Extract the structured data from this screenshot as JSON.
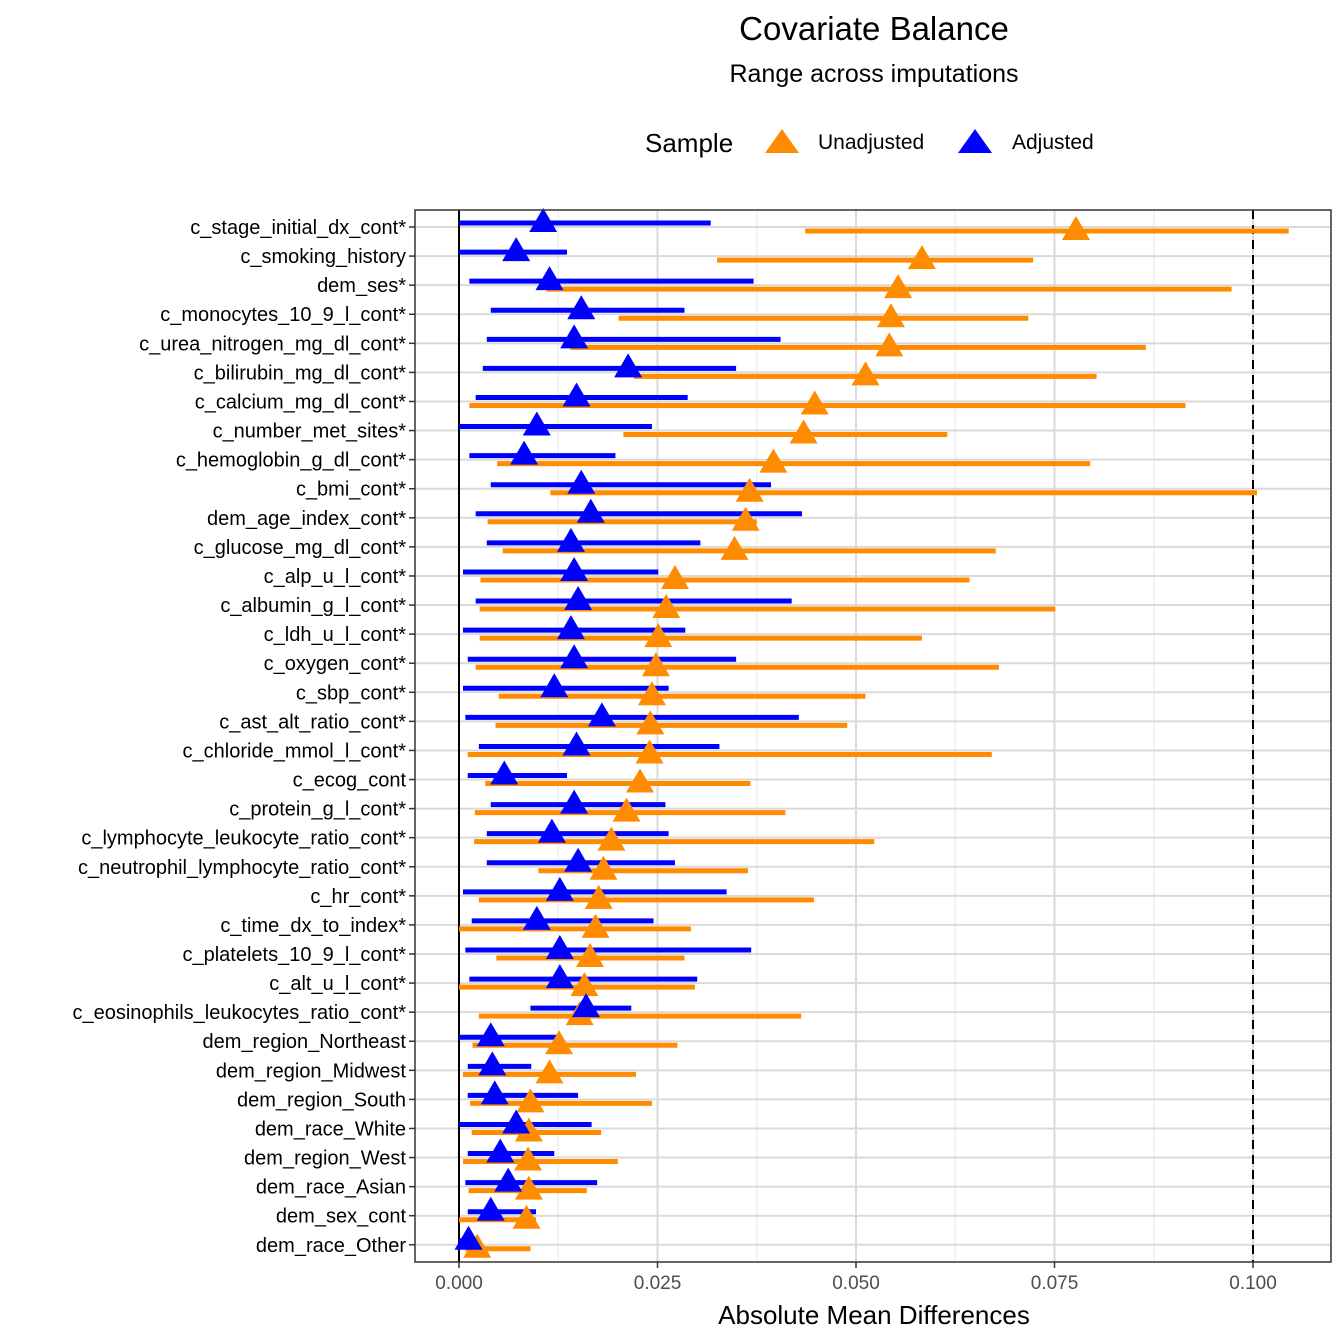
{
  "chart_data": {
    "type": "dot-range",
    "title": "Covariate Balance",
    "subtitle": "Range across imputations",
    "xlabel": "Absolute Mean Differences",
    "ylabel": "",
    "xlim": [
      -0.0113,
      0.1068
    ],
    "xticks": [
      "0.000",
      "0.025",
      "0.050",
      "0.075",
      "0.100"
    ],
    "xtick_values": [
      0,
      0.025,
      0.05,
      0.075,
      0.1
    ],
    "threshold": 0.1,
    "grid": true,
    "legend": {
      "title": "Sample",
      "position": "top",
      "entries": [
        "Unadjusted",
        "Adjusted"
      ]
    },
    "colors": {
      "Unadjusted": "#FF8C00",
      "Adjusted": "#0000FF"
    },
    "categories": [
      "c_stage_initial_dx_cont*",
      "c_smoking_history",
      "dem_ses*",
      "c_monocytes_10_9_l_cont*",
      "c_urea_nitrogen_mg_dl_cont*",
      "c_bilirubin_mg_dl_cont*",
      "c_calcium_mg_dl_cont*",
      "c_number_met_sites*",
      "c_hemoglobin_g_dl_cont*",
      "c_bmi_cont*",
      "dem_age_index_cont*",
      "c_glucose_mg_dl_cont*",
      "c_alp_u_l_cont*",
      "c_albumin_g_l_cont*",
      "c_ldh_u_l_cont*",
      "c_oxygen_cont*",
      "c_sbp_cont*",
      "c_ast_alt_ratio_cont*",
      "c_chloride_mmol_l_cont*",
      "c_ecog_cont",
      "c_protein_g_l_cont*",
      "c_lymphocyte_leukocyte_ratio_cont*",
      "c_neutrophil_lymphocyte_ratio_cont*",
      "c_hr_cont*",
      "c_time_dx_to_index*",
      "c_platelets_10_9_l_cont*",
      "c_alt_u_l_cont*",
      "c_eosinophils_leukocytes_ratio_cont*",
      "dem_region_Northeast",
      "dem_region_Midwest",
      "dem_region_South",
      "dem_race_White",
      "dem_region_West",
      "dem_race_Asian",
      "dem_sex_cont",
      "dem_race_Other"
    ],
    "series": [
      {
        "name": "Unadjusted",
        "values": [
          0.0777,
          0.0583,
          0.0553,
          0.0544,
          0.0542,
          0.0512,
          0.0448,
          0.0434,
          0.0396,
          0.0366,
          0.0361,
          0.0347,
          0.0272,
          0.0261,
          0.0251,
          0.0248,
          0.0243,
          0.0241,
          0.024,
          0.0228,
          0.0211,
          0.0192,
          0.0182,
          0.0176,
          0.0172,
          0.0165,
          0.0158,
          0.0152,
          0.0126,
          0.0114,
          0.009,
          0.0088,
          0.0087,
          0.0088,
          0.0085,
          0.0023
        ],
        "min": [
          0.0436,
          0.0325,
          0.011,
          0.0201,
          0.014,
          0.022,
          0.0013,
          0.0207,
          0.0048,
          0.0115,
          0.0036,
          0.0055,
          0.0027,
          0.0026,
          0.0026,
          0.0021,
          0.005,
          0.0046,
          0.0011,
          0.0033,
          0.002,
          0.0019,
          0.01,
          0.0025,
          0.0,
          0.0047,
          0.0,
          0.0025,
          0.0017,
          0.0005,
          0.0014,
          0.0016,
          0.0005,
          0.0012,
          0.0,
          0.0008
        ],
        "max": [
          0.1045,
          0.0723,
          0.0973,
          0.0717,
          0.0865,
          0.0803,
          0.0915,
          0.0615,
          0.0795,
          0.1005,
          0.0375,
          0.0676,
          0.0643,
          0.0751,
          0.0583,
          0.068,
          0.0512,
          0.0489,
          0.0671,
          0.0367,
          0.0411,
          0.0523,
          0.0364,
          0.0447,
          0.0292,
          0.0284,
          0.0297,
          0.0431,
          0.0275,
          0.0223,
          0.0243,
          0.0179,
          0.02,
          0.0161,
          0.0097,
          0.009
        ]
      },
      {
        "name": "Adjusted",
        "values": [
          0.0106,
          0.0072,
          0.0114,
          0.0154,
          0.0145,
          0.0213,
          0.0148,
          0.0098,
          0.0082,
          0.0154,
          0.0166,
          0.0141,
          0.0145,
          0.015,
          0.0141,
          0.0145,
          0.012,
          0.018,
          0.0148,
          0.0057,
          0.0145,
          0.0117,
          0.015,
          0.0127,
          0.0098,
          0.0127,
          0.0127,
          0.016,
          0.004,
          0.0042,
          0.0045,
          0.0072,
          0.0052,
          0.0062,
          0.004,
          0.0012
        ],
        "min": [
          0.0,
          0.0,
          0.0013,
          0.004,
          0.0035,
          0.003,
          0.0021,
          0.0,
          0.0013,
          0.004,
          0.0021,
          0.0035,
          0.0005,
          0.0021,
          0.0005,
          0.0011,
          0.0005,
          0.0008,
          0.0025,
          0.0011,
          0.004,
          0.0035,
          0.0035,
          0.0005,
          0.0016,
          0.0008,
          0.0013,
          0.009,
          0.0,
          0.0011,
          0.0011,
          0.0,
          0.0011,
          0.0008,
          0.0011,
          0.0
        ],
        "max": [
          0.0317,
          0.0136,
          0.0371,
          0.0284,
          0.0405,
          0.0349,
          0.0288,
          0.0243,
          0.0197,
          0.0393,
          0.0432,
          0.0304,
          0.0251,
          0.0419,
          0.0285,
          0.0349,
          0.0264,
          0.0428,
          0.0328,
          0.0136,
          0.026,
          0.0264,
          0.0272,
          0.0337,
          0.0245,
          0.0368,
          0.03,
          0.0217,
          0.0125,
          0.0091,
          0.015,
          0.0167,
          0.012,
          0.0174,
          0.0097,
          0.0022
        ]
      }
    ]
  }
}
